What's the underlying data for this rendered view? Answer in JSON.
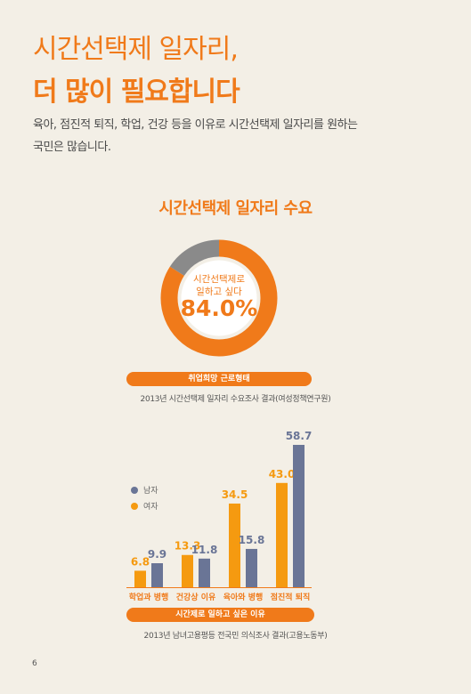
{
  "headline": {
    "line1": "시간선택제 일자리,",
    "line2": "더 많이 필요합니다"
  },
  "intro": {
    "line1": "육아, 점진적 퇴직, 학업, 건강 등을 이유로 시간선택제 일자리를 원하는",
    "line2": "국민은 많습니다."
  },
  "donut_section": {
    "title": "시간선택제 일자리 수요",
    "label_line1": "시간선택제로",
    "label_line2": "일하고 싶다",
    "value_text": "84.0%",
    "caption": "취업희망 근로형태",
    "source": "2013년 시간선택제 일자리 수요조사 결과(여성정책연구원)"
  },
  "bar_section": {
    "caption": "시간제로 일하고 싶은 이유",
    "source": "2013년 남녀고용평등 전국민 의식조사 결과(고용노동부)"
  },
  "page_number": "6",
  "colors": {
    "orange": "#f07a1a",
    "bar_orange": "#f59a10",
    "male": "#6a7596",
    "gray": "#8a8a8a",
    "background": "#f3efe6"
  },
  "chart_data": [
    {
      "type": "pie",
      "title": "시간선택제 일자리 수요",
      "slices": [
        {
          "label": "시간선택제로 일하고 싶다",
          "value": 84.0
        },
        {
          "label": "",
          "value": 16.0
        }
      ]
    },
    {
      "type": "bar",
      "title": "",
      "xlabel": "시간제로 일하고 싶은 이유",
      "ylabel": "",
      "categories": [
        "학업과 병행",
        "건강상 이유",
        "육아와 병행",
        "점진적 퇴직"
      ],
      "series": [
        {
          "name": "여자",
          "values": [
            6.8,
            13.3,
            34.5,
            43.0
          ]
        },
        {
          "name": "남자",
          "values": [
            9.9,
            11.8,
            15.8,
            58.7
          ]
        }
      ],
      "ylim": [
        0,
        60
      ],
      "grid": false,
      "legend": "left"
    }
  ]
}
